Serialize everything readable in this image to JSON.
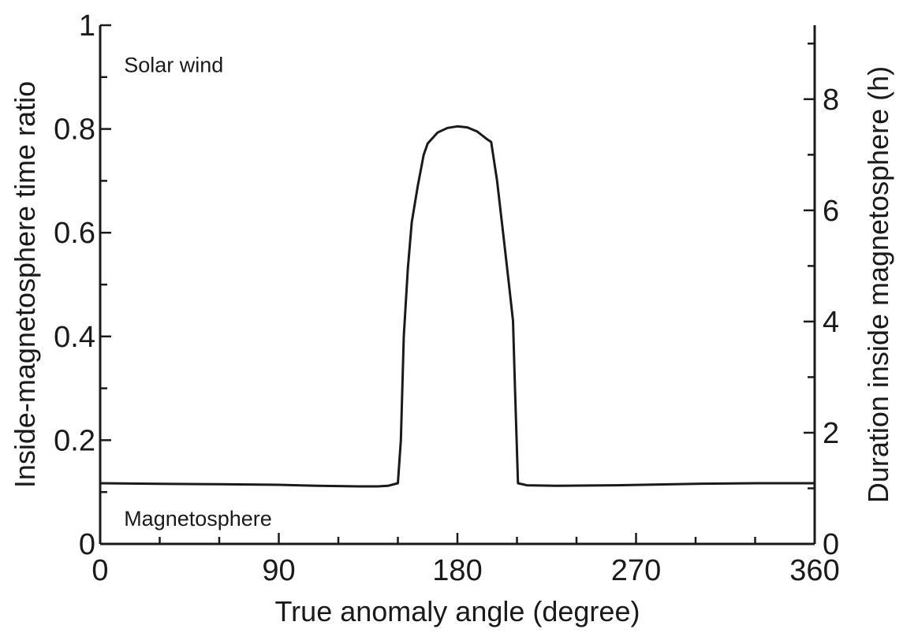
{
  "chart_data": {
    "type": "line",
    "title": "",
    "xlabel": "True anomaly angle (degree)",
    "ylabel": "Inside-magnetosphere time ratio",
    "y2label": "Duration inside magnetosphere (h)",
    "xlim": [
      0,
      360
    ],
    "ylim": [
      0,
      1
    ],
    "y2lim": [
      0,
      9.33
    ],
    "grid": false,
    "x_ticks": [
      0,
      90,
      180,
      270,
      360
    ],
    "x_tick_labels": [
      "0",
      "90",
      "180",
      "270",
      "360"
    ],
    "x_minor_ticks": [
      30,
      60,
      120,
      150,
      210,
      240,
      300,
      330
    ],
    "y_ticks": [
      0,
      0.2,
      0.4,
      0.6,
      0.8,
      1
    ],
    "y_tick_labels": [
      "0",
      "0.2",
      "0.4",
      "0.6",
      "0.8",
      "1"
    ],
    "y_minor_ticks": [
      0.1,
      0.3,
      0.5,
      0.7,
      0.9
    ],
    "y2_ticks": [
      0,
      2,
      4,
      6,
      8
    ],
    "y2_tick_labels": [
      "0",
      "2",
      "4",
      "6",
      "8"
    ],
    "y2_minor_ticks": [
      1,
      3,
      5,
      7,
      9
    ],
    "annotations": [
      {
        "text": "Solar wind",
        "x": 12,
        "y": 0.925
      },
      {
        "text": "Magnetosphere",
        "x": 12,
        "y": 0.05
      }
    ],
    "series": [
      {
        "x": [
          0,
          30,
          60,
          90,
          110,
          130,
          140,
          145,
          150,
          151.5,
          153,
          155,
          157,
          160,
          163,
          165,
          170,
          175,
          180,
          185,
          190,
          195,
          197,
          200,
          203,
          206,
          208,
          209,
          210.5,
          215,
          230,
          260,
          300,
          330,
          360
        ],
        "y": [
          0.117,
          0.116,
          0.115,
          0.114,
          0.112,
          0.111,
          0.111,
          0.112,
          0.117,
          0.2,
          0.4,
          0.53,
          0.62,
          0.69,
          0.75,
          0.772,
          0.793,
          0.802,
          0.805,
          0.803,
          0.795,
          0.78,
          0.775,
          0.7,
          0.6,
          0.5,
          0.43,
          0.3,
          0.117,
          0.113,
          0.112,
          0.113,
          0.116,
          0.117,
          0.117
        ]
      }
    ]
  }
}
